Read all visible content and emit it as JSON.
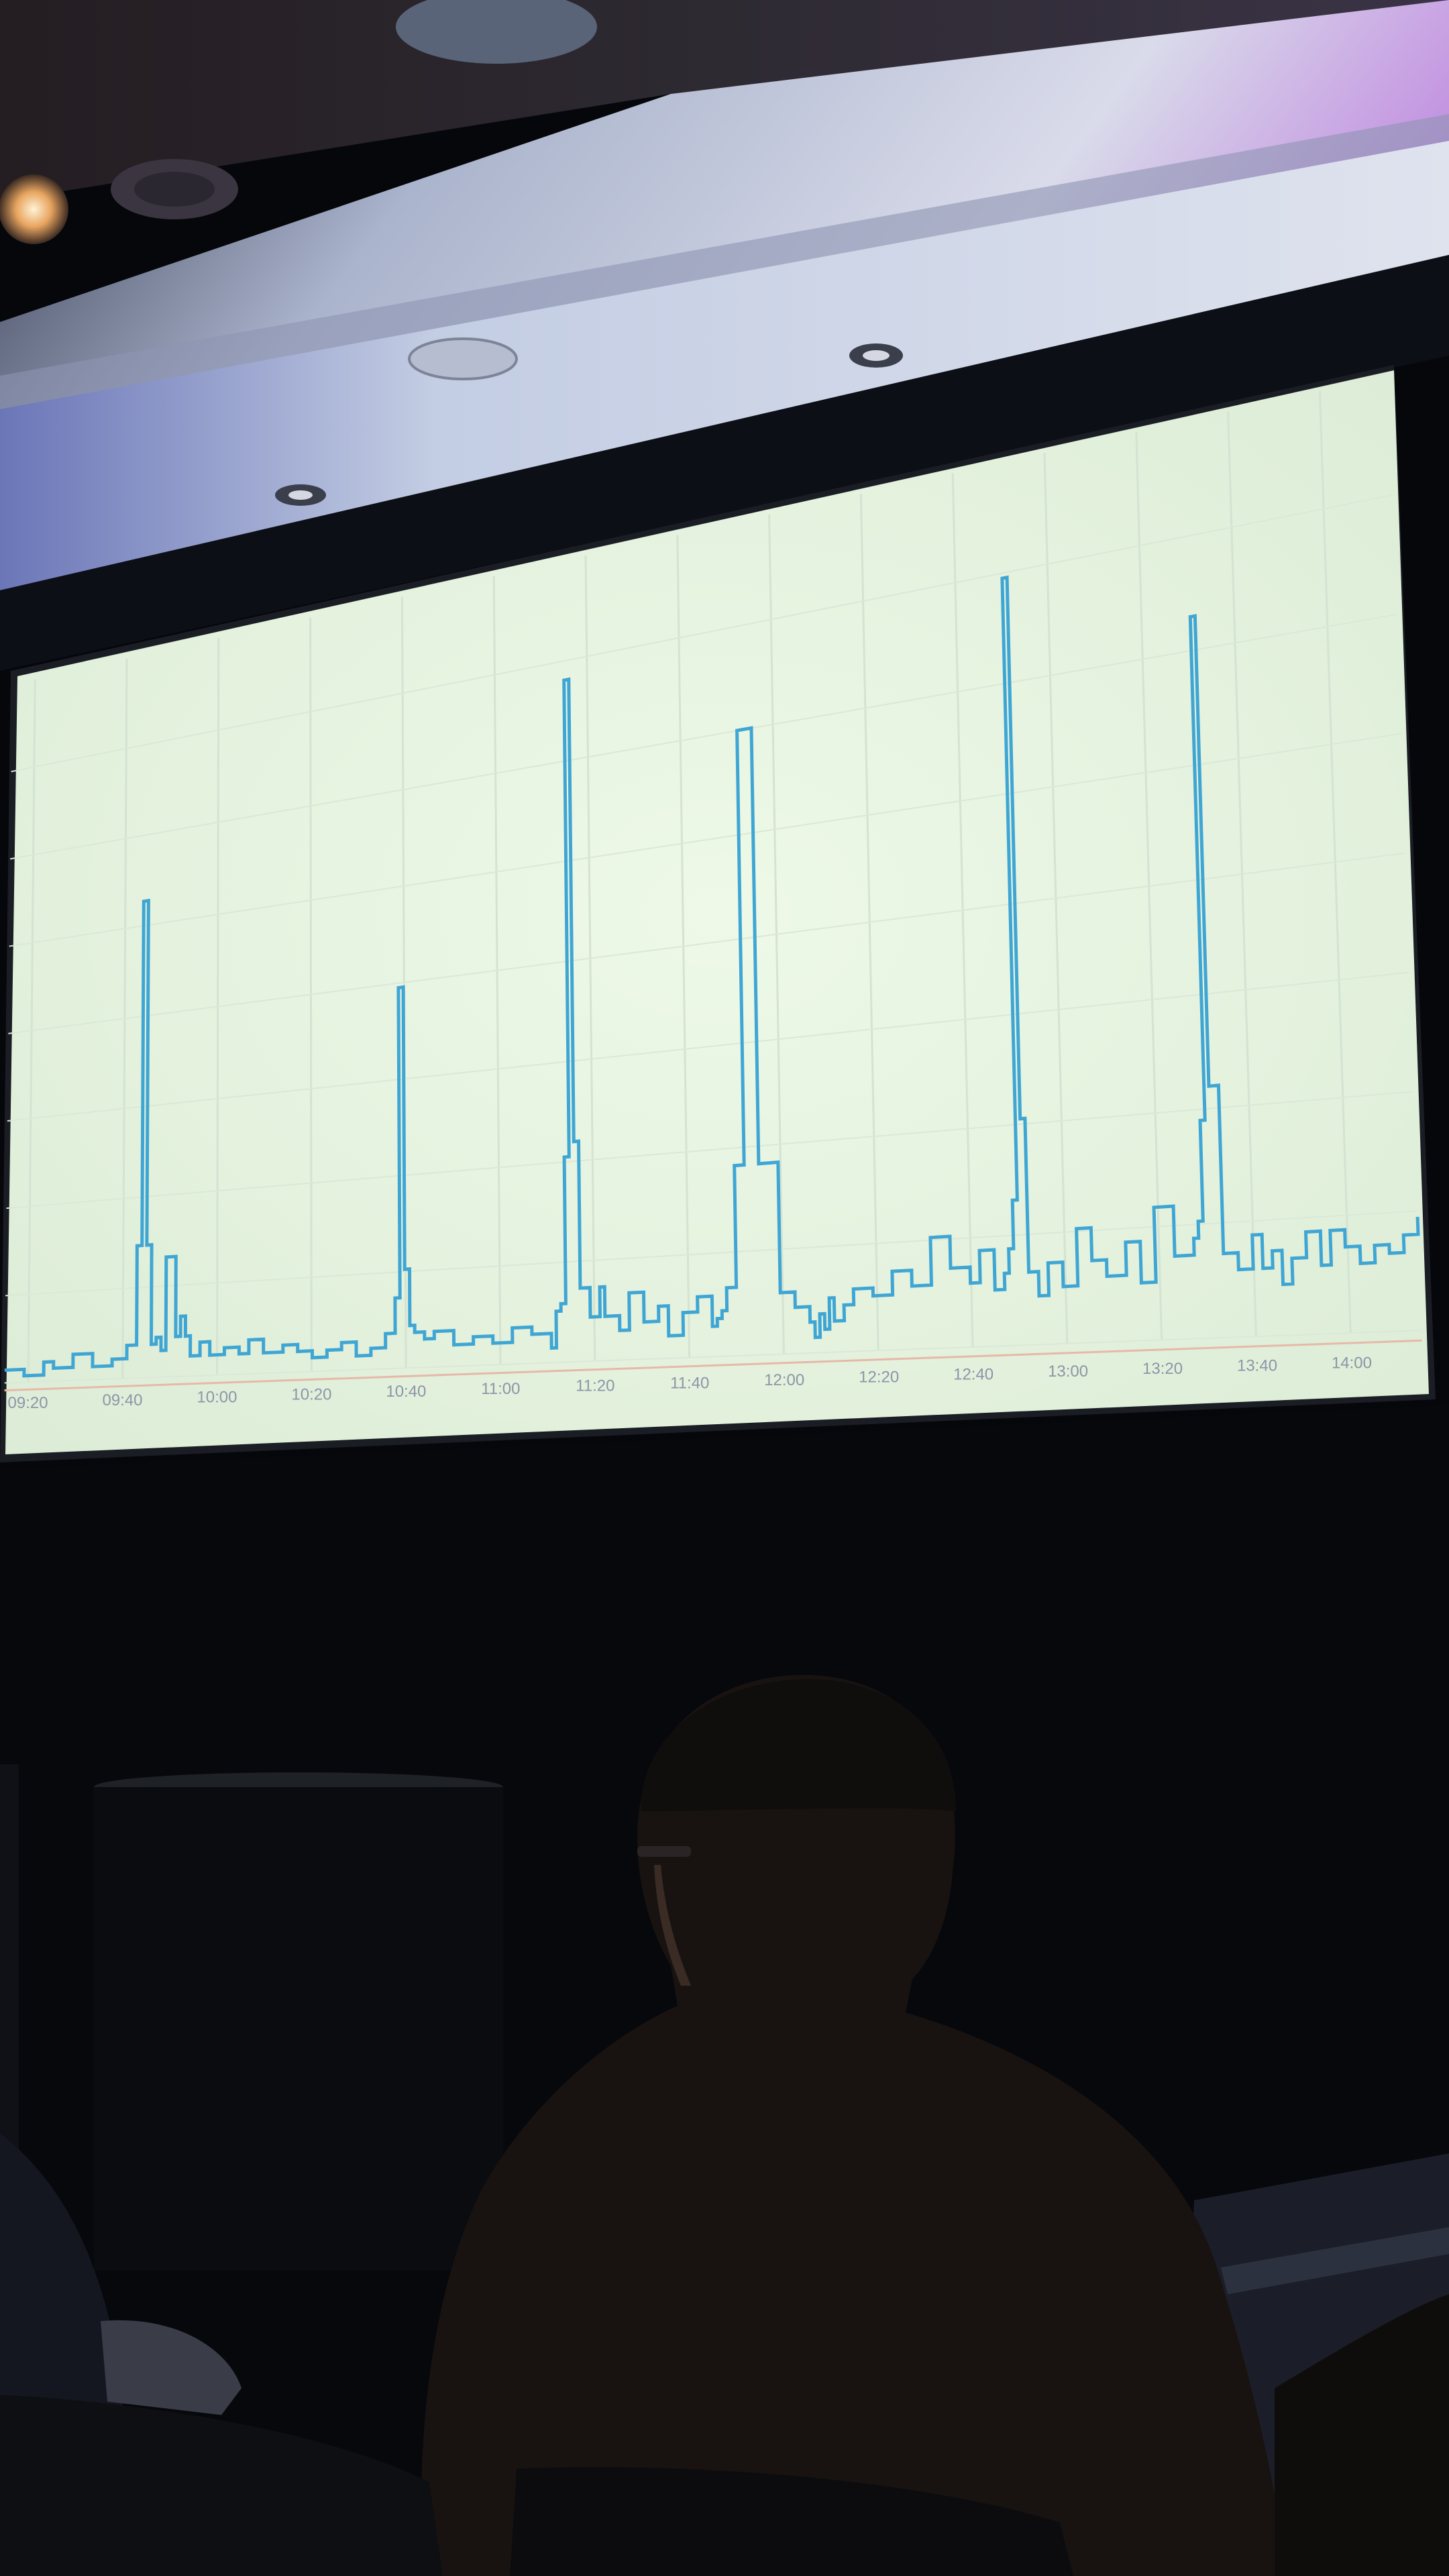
{
  "scene": {
    "description_tags": [
      "conference-room",
      "projection-screen",
      "audience-silhouette"
    ],
    "colors": {
      "ceiling": "#c9d3e6",
      "ceiling_shadow": "#1e2230",
      "ceiling_glow": "#b07ad0",
      "screen_background": "#e9f6e2",
      "line": "#3fa6d4",
      "wall": "#06070b",
      "person": "#181311"
    }
  },
  "chart_data": {
    "type": "line",
    "title": "",
    "xlabel": "",
    "ylabel": "",
    "x_tick_labels": [
      "09:20",
      "09:40",
      "10:00",
      "10:20",
      "10:40",
      "11:00",
      "11:20",
      "11:40",
      "12:00",
      "12:20",
      "12:40",
      "13:00",
      "13:20",
      "13:40",
      "14:00"
    ],
    "x_range_minutes": [
      0,
      290
    ],
    "y_range": [
      0,
      100
    ],
    "grid": true,
    "legend": "none",
    "series": [
      {
        "name": "",
        "step": true,
        "x": [
          0,
          4,
          8,
          10,
          14,
          18,
          22,
          25,
          27,
          28,
          29,
          30,
          31,
          32,
          33,
          35,
          36,
          37,
          38,
          40,
          42,
          45,
          48,
          50,
          53,
          57,
          60,
          63,
          66,
          69,
          72,
          75,
          78,
          80,
          81,
          82,
          83,
          84,
          86,
          88,
          92,
          96,
          100,
          104,
          108,
          112,
          113,
          114,
          115,
          116,
          117,
          118,
          120,
          122,
          123,
          126,
          128,
          131,
          134,
          136,
          139,
          142,
          145,
          146,
          147,
          148,
          150,
          152,
          155,
          159,
          162,
          165,
          166,
          167,
          168,
          169,
          170,
          172,
          174,
          178,
          182,
          186,
          190,
          194,
          198,
          200,
          203,
          205,
          206,
          207,
          208,
          209,
          210,
          212,
          214,
          217,
          220,
          223,
          226,
          230,
          233,
          236,
          240,
          244,
          245,
          246,
          247,
          248,
          250,
          253,
          256,
          258,
          260,
          262,
          264,
          267,
          270,
          272,
          275,
          278,
          281,
          284,
          287,
          290
        ],
        "y": [
          2,
          1,
          3,
          2,
          4,
          2,
          3,
          5,
          20,
          72,
          20,
          5,
          6,
          4,
          18,
          6,
          9,
          6,
          3,
          5,
          3,
          4,
          3,
          5,
          3,
          4,
          3,
          2,
          3,
          4,
          2,
          3,
          5,
          10,
          54,
          14,
          6,
          5,
          4,
          5,
          3,
          4,
          3,
          5,
          4,
          2,
          7,
          8,
          28,
          93,
          30,
          10,
          6,
          10,
          6,
          4,
          9,
          5,
          7,
          3,
          6,
          8,
          4,
          5,
          6,
          9,
          25,
          82,
          25,
          8,
          6,
          4,
          2,
          5,
          3,
          7,
          4,
          6,
          8,
          7,
          10,
          8,
          14,
          10,
          8,
          12,
          7,
          9,
          12,
          18,
          95,
          28,
          9,
          6,
          10,
          7,
          14,
          10,
          8,
          12,
          7,
          16,
          10,
          12,
          14,
          26,
          86,
          30,
          10,
          8,
          12,
          8,
          10,
          6,
          9,
          12,
          8,
          12,
          10,
          8,
          10,
          9,
          11,
          13
        ]
      }
    ]
  }
}
